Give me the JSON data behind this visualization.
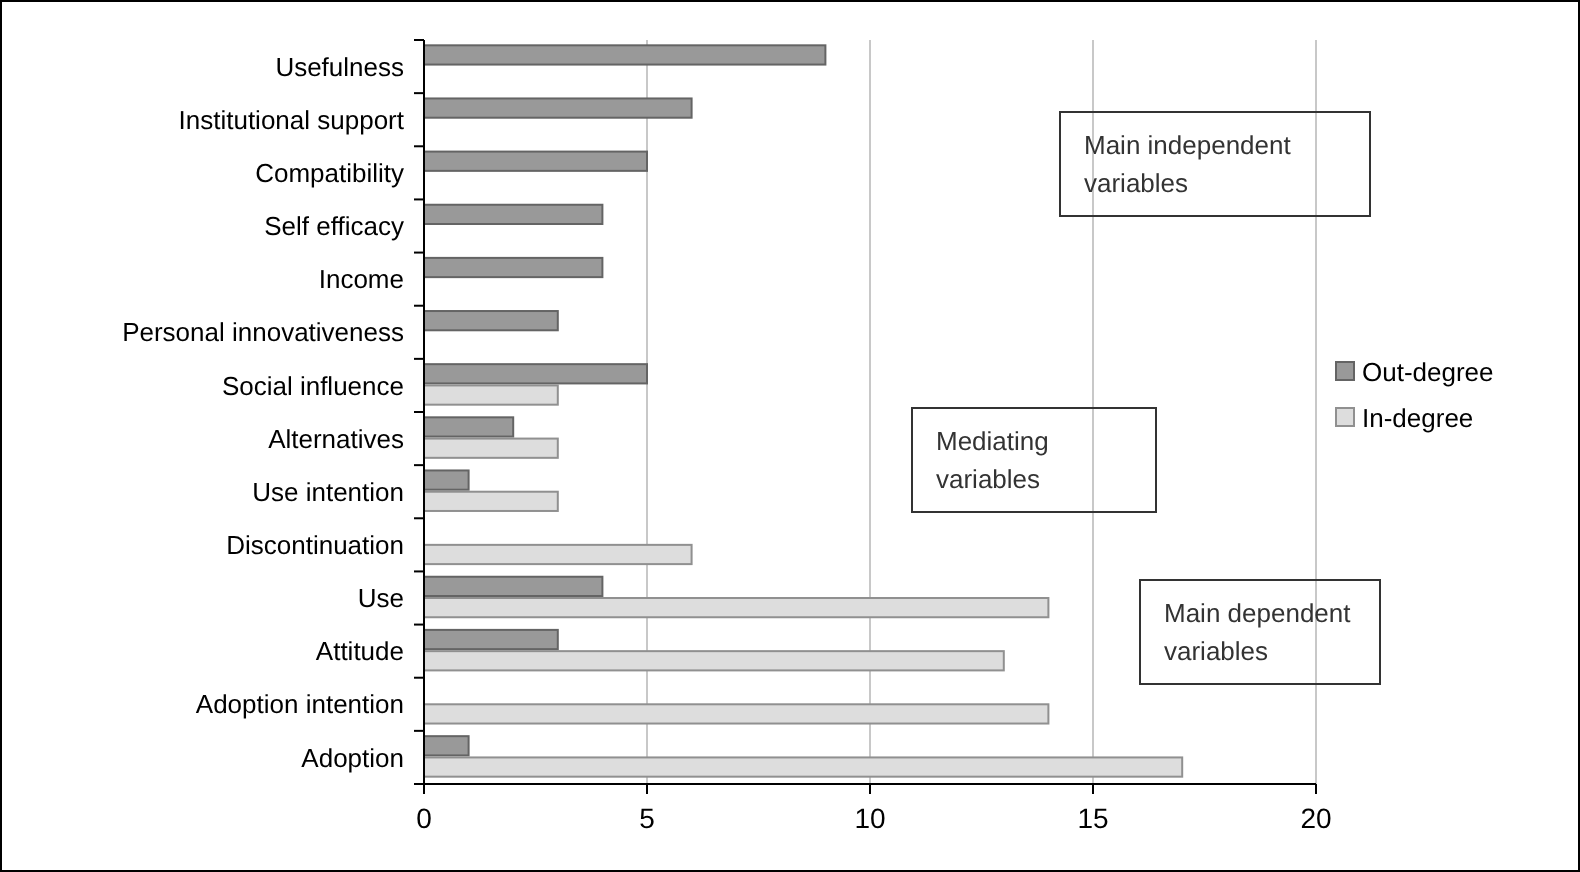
{
  "chart_data": {
    "type": "bar",
    "orientation": "horizontal",
    "categories": [
      "Usefulness",
      "Institutional support",
      "Compatibility",
      "Self efficacy",
      "Income",
      "Personal innovativeness",
      "Social influence",
      "Alternatives",
      "Use intention",
      "Discontinuation",
      "Use",
      "Attitude",
      "Adoption intention",
      "Adoption"
    ],
    "series": [
      {
        "name": "Out-degree",
        "color": "#999999",
        "values": [
          9,
          6,
          5,
          4,
          4,
          3,
          5,
          2,
          1,
          null,
          4,
          3,
          null,
          1
        ]
      },
      {
        "name": "In-degree",
        "color": "#dddddd",
        "values": [
          null,
          null,
          null,
          null,
          null,
          null,
          3,
          3,
          3,
          6,
          14,
          13,
          14,
          17
        ]
      }
    ],
    "xlim": [
      0,
      20
    ],
    "xticks": [
      0,
      5,
      10,
      15,
      20
    ],
    "grid": "x",
    "legend": "right",
    "annotations": [
      "Main independent variables",
      "Mediating variables",
      "Main dependent variables"
    ]
  }
}
